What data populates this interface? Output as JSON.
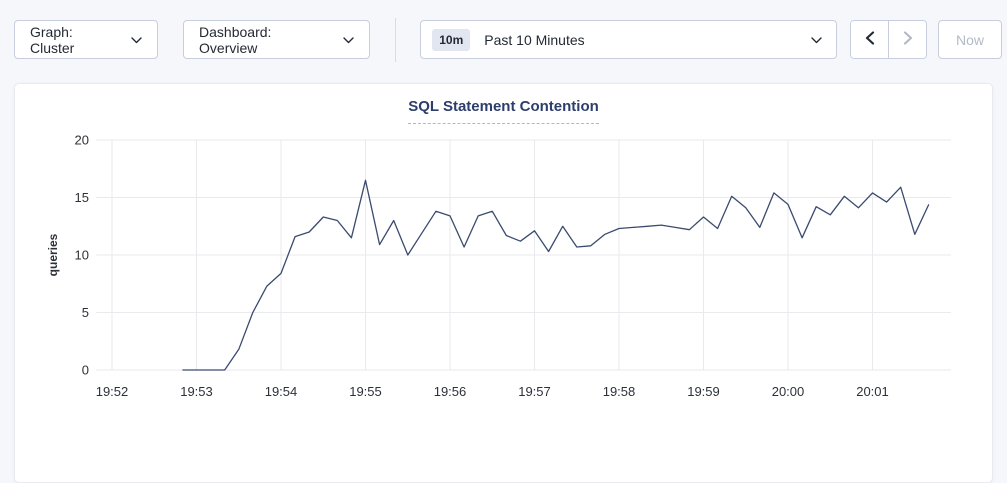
{
  "toolbar": {
    "graph_dropdown": {
      "label": "Graph: Cluster"
    },
    "dashboard_dropdown": {
      "label": "Dashboard: Overview"
    },
    "time_range": {
      "badge": "10m",
      "label": "Past 10 Minutes"
    },
    "prev_button": {
      "icon": "chevron-left",
      "enabled": true
    },
    "next_button": {
      "icon": "chevron-right",
      "enabled": false
    },
    "now_button": {
      "label": "Now",
      "enabled": false
    }
  },
  "colors": {
    "page_background": "#f5f7fa",
    "card_background": "#ffffff",
    "button_border": "#c9cede",
    "title_link": "#2c3e6b",
    "disabled_text": "#b3bac6",
    "gridline": "#e9eaee",
    "series_line": "#3b4a6e"
  },
  "chart_data": {
    "type": "line",
    "title": "SQL Statement Contention",
    "ylabel": "queries",
    "x_ticks": [
      "19:52",
      "19:53",
      "19:54",
      "19:55",
      "19:56",
      "19:57",
      "19:58",
      "19:59",
      "20:00",
      "20:01"
    ],
    "y_ticks": [
      0,
      5,
      10,
      15,
      20
    ],
    "ylim": [
      0,
      20
    ],
    "grid": true,
    "legend": "none",
    "series_name": "queries",
    "start_time": "19:52:50",
    "interval_seconds": 10,
    "start_offset_seconds": 50,
    "line_color": "#3b4a6e",
    "values": [
      0,
      0,
      0,
      0,
      1.8,
      5,
      7.3,
      8.4,
      11.6,
      12,
      13.3,
      13,
      11.5,
      16.5,
      10.9,
      13,
      10,
      11.9,
      13.8,
      13.4,
      10.7,
      13.4,
      13.8,
      11.7,
      11.2,
      12.1,
      10.3,
      12.5,
      10.7,
      10.8,
      11.8,
      12.3,
      12.4,
      12.5,
      12.6,
      12.4,
      12.2,
      13.3,
      12.3,
      15.1,
      14.1,
      12.4,
      15.4,
      14.4,
      11.5,
      14.2,
      13.5,
      15.1,
      14.1,
      15.4,
      14.6,
      15.9,
      11.8,
      14.4
    ]
  }
}
